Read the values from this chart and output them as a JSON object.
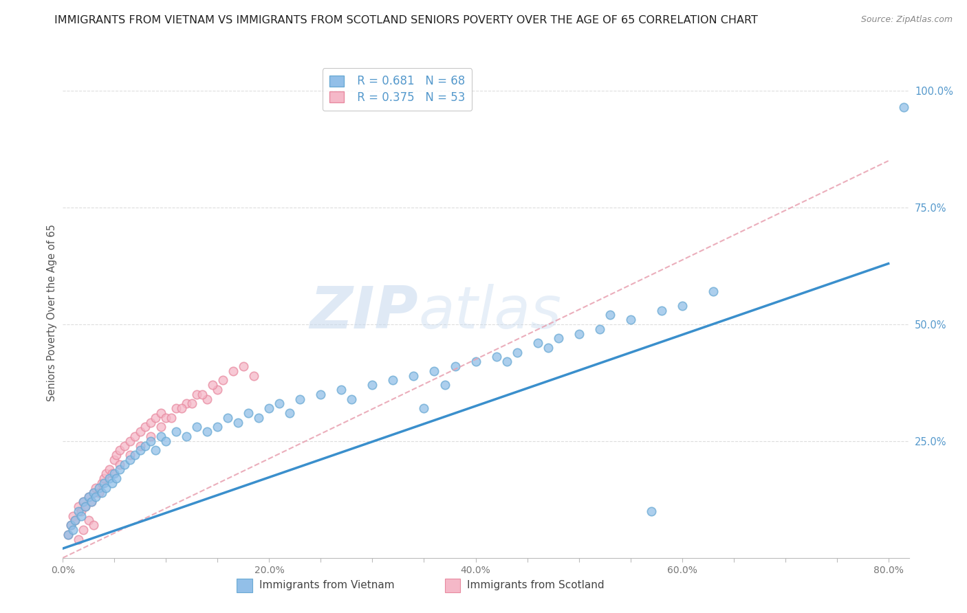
{
  "title": "IMMIGRANTS FROM VIETNAM VS IMMIGRANTS FROM SCOTLAND SENIORS POVERTY OVER THE AGE OF 65 CORRELATION CHART",
  "source": "Source: ZipAtlas.com",
  "ylabel": "Seniors Poverty Over the Age of 65",
  "xlim": [
    0.0,
    0.82
  ],
  "ylim": [
    0.0,
    1.05
  ],
  "xtick_labels": [
    "0.0%",
    "",
    "",
    "",
    "20.0%",
    "",
    "",
    "",
    "40.0%",
    "",
    "",
    "",
    "60.0%",
    "",
    "",
    "",
    "80.0%"
  ],
  "xtick_vals": [
    0.0,
    0.05,
    0.1,
    0.15,
    0.2,
    0.25,
    0.3,
    0.35,
    0.4,
    0.45,
    0.5,
    0.55,
    0.6,
    0.65,
    0.7,
    0.75,
    0.8
  ],
  "ytick_labels": [
    "25.0%",
    "50.0%",
    "75.0%",
    "100.0%"
  ],
  "ytick_vals": [
    0.25,
    0.5,
    0.75,
    1.0
  ],
  "vietnam_color": "#92bfe8",
  "vietnam_edge_color": "#6aaad4",
  "scotland_color": "#f5b8c8",
  "scotland_edge_color": "#e88aa0",
  "vietnam_line_color": "#3a8fcc",
  "scotland_line_color": "#e8a0b0",
  "right_tick_color": "#5599cc",
  "bottom_tick_color": "#777777",
  "vietnam_R": 0.681,
  "vietnam_N": 68,
  "scotland_R": 0.375,
  "scotland_N": 53,
  "watermark_zip": "ZIP",
  "watermark_atlas": "atlas",
  "vietnam_line_x": [
    0.0,
    0.8
  ],
  "vietnam_line_y": [
    0.02,
    0.63
  ],
  "scotland_line_x": [
    0.0,
    0.8
  ],
  "scotland_line_y": [
    0.0,
    0.85
  ],
  "outlier_x": [
    0.815
  ],
  "outlier_y": [
    0.965
  ],
  "vietnam_x": [
    0.005,
    0.008,
    0.01,
    0.012,
    0.015,
    0.018,
    0.02,
    0.022,
    0.025,
    0.028,
    0.03,
    0.032,
    0.035,
    0.038,
    0.04,
    0.042,
    0.045,
    0.048,
    0.05,
    0.052,
    0.055,
    0.06,
    0.065,
    0.07,
    0.075,
    0.08,
    0.085,
    0.09,
    0.095,
    0.1,
    0.11,
    0.12,
    0.13,
    0.14,
    0.15,
    0.16,
    0.17,
    0.18,
    0.19,
    0.2,
    0.21,
    0.22,
    0.23,
    0.25,
    0.27,
    0.28,
    0.3,
    0.32,
    0.34,
    0.36,
    0.38,
    0.4,
    0.42,
    0.44,
    0.46,
    0.48,
    0.5,
    0.52,
    0.55,
    0.58,
    0.6,
    0.63,
    0.35,
    0.37,
    0.43,
    0.47,
    0.53,
    0.57
  ],
  "vietnam_y": [
    0.05,
    0.07,
    0.06,
    0.08,
    0.1,
    0.09,
    0.12,
    0.11,
    0.13,
    0.12,
    0.14,
    0.13,
    0.15,
    0.14,
    0.16,
    0.15,
    0.17,
    0.16,
    0.18,
    0.17,
    0.19,
    0.2,
    0.21,
    0.22,
    0.23,
    0.24,
    0.25,
    0.23,
    0.26,
    0.25,
    0.27,
    0.26,
    0.28,
    0.27,
    0.28,
    0.3,
    0.29,
    0.31,
    0.3,
    0.32,
    0.33,
    0.31,
    0.34,
    0.35,
    0.36,
    0.34,
    0.37,
    0.38,
    0.39,
    0.4,
    0.41,
    0.42,
    0.43,
    0.44,
    0.46,
    0.47,
    0.48,
    0.49,
    0.51,
    0.53,
    0.54,
    0.57,
    0.32,
    0.37,
    0.42,
    0.45,
    0.52,
    0.1
  ],
  "scotland_x": [
    0.005,
    0.008,
    0.01,
    0.012,
    0.015,
    0.018,
    0.02,
    0.022,
    0.025,
    0.028,
    0.03,
    0.032,
    0.035,
    0.038,
    0.04,
    0.042,
    0.045,
    0.048,
    0.05,
    0.052,
    0.055,
    0.06,
    0.065,
    0.07,
    0.075,
    0.08,
    0.085,
    0.09,
    0.095,
    0.1,
    0.11,
    0.12,
    0.13,
    0.14,
    0.15,
    0.055,
    0.065,
    0.075,
    0.085,
    0.095,
    0.105,
    0.115,
    0.125,
    0.135,
    0.145,
    0.155,
    0.165,
    0.175,
    0.185,
    0.02,
    0.025,
    0.03,
    0.015
  ],
  "scotland_y": [
    0.05,
    0.07,
    0.09,
    0.08,
    0.11,
    0.1,
    0.12,
    0.11,
    0.13,
    0.12,
    0.14,
    0.15,
    0.14,
    0.16,
    0.17,
    0.18,
    0.19,
    0.18,
    0.21,
    0.22,
    0.23,
    0.24,
    0.25,
    0.26,
    0.27,
    0.28,
    0.29,
    0.3,
    0.31,
    0.3,
    0.32,
    0.33,
    0.35,
    0.34,
    0.36,
    0.2,
    0.22,
    0.24,
    0.26,
    0.28,
    0.3,
    0.32,
    0.33,
    0.35,
    0.37,
    0.38,
    0.4,
    0.41,
    0.39,
    0.06,
    0.08,
    0.07,
    0.04
  ]
}
